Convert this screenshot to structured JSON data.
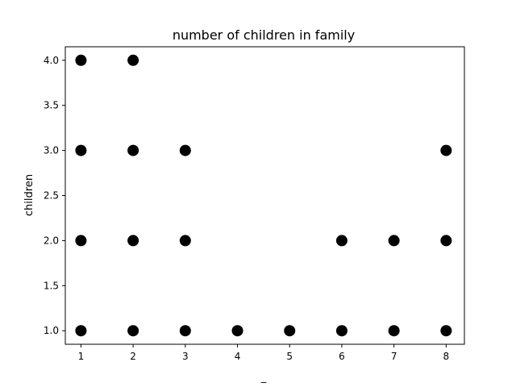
{
  "chart_data": {
    "type": "scatter",
    "title": "number of children in family",
    "xlabel": "_",
    "ylabel": "children",
    "xlim": [
      0.7,
      8.35
    ],
    "ylim": [
      0.85,
      4.15
    ],
    "xticks": [
      "1",
      "2",
      "3",
      "4",
      "5",
      "6",
      "7",
      "8"
    ],
    "yticks": [
      "1.0",
      "1.5",
      "2.0",
      "2.5",
      "3.0",
      "3.5",
      "4.0"
    ],
    "grid": false,
    "marker_color": "#000000",
    "points": [
      {
        "x": 1,
        "y": 4
      },
      {
        "x": 1,
        "y": 3
      },
      {
        "x": 1,
        "y": 2
      },
      {
        "x": 1,
        "y": 1
      },
      {
        "x": 2,
        "y": 4
      },
      {
        "x": 2,
        "y": 3
      },
      {
        "x": 2,
        "y": 2
      },
      {
        "x": 2,
        "y": 1
      },
      {
        "x": 3,
        "y": 3
      },
      {
        "x": 3,
        "y": 2
      },
      {
        "x": 3,
        "y": 1
      },
      {
        "x": 4,
        "y": 1
      },
      {
        "x": 5,
        "y": 1
      },
      {
        "x": 6,
        "y": 2
      },
      {
        "x": 6,
        "y": 1
      },
      {
        "x": 7,
        "y": 2
      },
      {
        "x": 7,
        "y": 1
      },
      {
        "x": 8,
        "y": 3
      },
      {
        "x": 8,
        "y": 2
      },
      {
        "x": 8,
        "y": 1
      }
    ]
  }
}
